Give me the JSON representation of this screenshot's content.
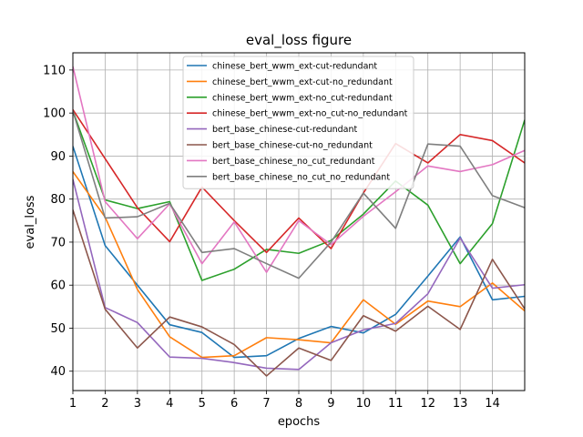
{
  "chart_data": {
    "type": "line",
    "title": "eval_loss figure",
    "xlabel": "epochs",
    "ylabel": "eval_loss",
    "x": [
      1,
      2,
      3,
      4,
      5,
      6,
      7,
      8,
      9,
      10,
      11,
      12,
      13,
      14,
      15
    ],
    "x_ticks": [
      "1",
      "2",
      "3",
      "4",
      "5",
      "6",
      "7",
      "8",
      "9",
      "10",
      "11",
      "12",
      "13",
      "14"
    ],
    "xlim": [
      1,
      15
    ],
    "ylim": [
      35.5,
      114
    ],
    "y_ticks": [
      "40",
      "50",
      "60",
      "70",
      "80",
      "90",
      "100",
      "110"
    ],
    "grid": true,
    "legend_position": "top-center",
    "series": [
      {
        "name": "chinese_bert_wwm_ext-cut-redundant",
        "color": "#1f77b4",
        "values": [
          92.3,
          69.2,
          60.0,
          50.8,
          49.0,
          43.2,
          43.6,
          47.6,
          50.4,
          48.9,
          53.2,
          62.1,
          71.2,
          56.6,
          57.4
        ]
      },
      {
        "name": "chinese_bert_wwm_ext-cut-no_redundant",
        "color": "#ff7f0e",
        "values": [
          86.4,
          75.8,
          59.0,
          48.0,
          43.2,
          43.6,
          47.8,
          47.3,
          46.6,
          56.6,
          50.9,
          56.3,
          55.0,
          60.5,
          54.0
        ]
      },
      {
        "name": "chinese_bert_wwm_ext-no_cut-redundant",
        "color": "#2ca02c",
        "values": [
          100.5,
          79.8,
          77.8,
          79.4,
          61.1,
          63.7,
          68.3,
          67.4,
          70.4,
          76.5,
          84.2,
          78.6,
          65.0,
          74.3,
          98.4
        ]
      },
      {
        "name": "chinese_bert_wwm_ext-no_cut-no_redundant",
        "color": "#d62728",
        "values": [
          100.8,
          89.4,
          78.0,
          70.1,
          82.8,
          75.0,
          67.6,
          75.6,
          68.5,
          81.4,
          92.9,
          88.4,
          95.0,
          93.6,
          88.4
        ]
      },
      {
        "name": "bert_base_chinese-cut-redundant",
        "color": "#9467bd",
        "values": [
          84.6,
          54.8,
          51.3,
          43.3,
          43.0,
          42.0,
          40.7,
          40.4,
          46.6,
          49.6,
          51.1,
          58.0,
          71.0,
          59.3,
          60.1
        ]
      },
      {
        "name": "bert_base_chinese-cut-no_redundant",
        "color": "#8c564b",
        "values": [
          77.5,
          54.4,
          45.4,
          52.6,
          50.3,
          46.2,
          38.9,
          45.4,
          42.5,
          52.9,
          49.3,
          55.1,
          49.7,
          66.0,
          54.5
        ]
      },
      {
        "name": "bert_base_chinese_no_cut_redundant",
        "color": "#e377c2",
        "values": [
          110.8,
          79.4,
          70.8,
          78.9,
          65.0,
          74.7,
          63.0,
          75.0,
          69.4,
          76.0,
          81.7,
          87.7,
          86.4,
          88.0,
          91.3
        ]
      },
      {
        "name": "bert_base_chinese_no_cut_no_redundant",
        "color": "#7f7f7f",
        "values": [
          100.5,
          75.6,
          75.9,
          79.0,
          67.6,
          68.5,
          65.0,
          61.6,
          70.0,
          81.4,
          73.2,
          92.8,
          92.3,
          80.8,
          78.0
        ]
      }
    ]
  }
}
